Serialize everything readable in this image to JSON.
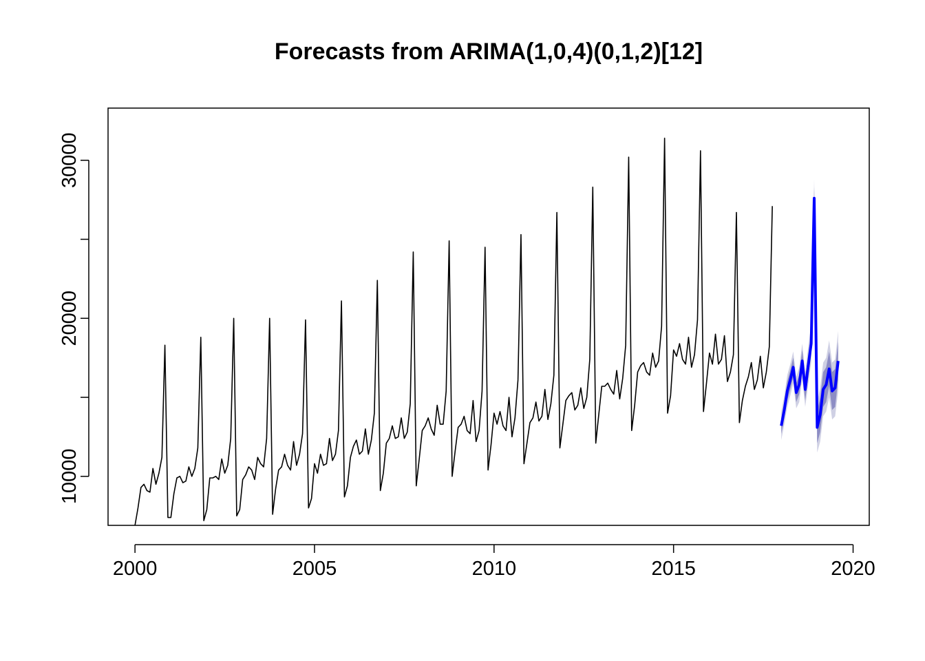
{
  "chart_data": {
    "type": "line",
    "title": "Forecasts from ARIMA(1,0,4)(0,1,2)[12]",
    "xlabel": "",
    "ylabel": "",
    "xlim": [
      1999.25,
      2020.45
    ],
    "ylim": [
      6900,
      33300
    ],
    "x_ticks": [
      2000,
      2005,
      2010,
      2015,
      2020
    ],
    "y_ticks": [
      10000,
      20000,
      30000
    ],
    "grid": false,
    "legend": "none",
    "colors": {
      "history": "#000000",
      "forecast": "#0000ff",
      "band80": "#8d8dc4",
      "band95": "#cfd0e4"
    },
    "series": [
      {
        "role": "history",
        "start": 2000,
        "frequency": 12,
        "values": [
          6900,
          8000,
          9300,
          9500,
          9100,
          9000,
          10500,
          9500,
          10200,
          11200,
          18300,
          7400,
          7400,
          8900,
          9900,
          10000,
          9600,
          9700,
          10600,
          10000,
          10500,
          11800,
          18800,
          7200,
          7900,
          9900,
          9900,
          10000,
          9800,
          11100,
          10200,
          10700,
          12400,
          20000,
          7500,
          7900,
          9800,
          10100,
          10600,
          10400,
          9800,
          11200,
          10800,
          10600,
          12400,
          20000,
          7600,
          9200,
          10400,
          10600,
          11400,
          10700,
          10400,
          12200,
          10700,
          11400,
          12700,
          19900,
          8000,
          8600,
          10800,
          10200,
          11400,
          10700,
          10800,
          12400,
          11000,
          11400,
          12900,
          21100,
          8700,
          9400,
          11200,
          11900,
          12300,
          11400,
          11600,
          13000,
          11400,
          12300,
          14000,
          22400,
          9100,
          10200,
          12100,
          12400,
          13200,
          12400,
          12500,
          13700,
          12400,
          12800,
          14600,
          24200,
          9400,
          11100,
          12900,
          13200,
          13700,
          13000,
          12600,
          14500,
          13300,
          13300,
          15400,
          24900,
          10000,
          11600,
          13100,
          13300,
          13800,
          12900,
          12700,
          14800,
          12200,
          12900,
          15400,
          24500,
          10400,
          12000,
          14000,
          13300,
          14100,
          13200,
          12900,
          15000,
          12500,
          13700,
          16100,
          25300,
          10800,
          12100,
          13400,
          13700,
          14700,
          13500,
          13800,
          15500,
          13600,
          14600,
          16400,
          26700,
          11800,
          13300,
          14800,
          15100,
          15300,
          14200,
          14500,
          15600,
          14300,
          15000,
          17400,
          28300,
          12100,
          13900,
          15700,
          15700,
          15900,
          15500,
          15200,
          16700,
          14900,
          16200,
          18300,
          30200,
          12900,
          14500,
          16600,
          17000,
          17200,
          16600,
          16400,
          17800,
          16900,
          17300,
          19500,
          31400,
          14000,
          15100,
          18000,
          17600,
          18400,
          17400,
          17100,
          18800,
          16900,
          17700,
          19900,
          30600,
          14100,
          15900,
          17800,
          17100,
          19000,
          17100,
          17400,
          18900,
          16000,
          16600,
          17700,
          26700,
          13400,
          14800,
          15700,
          16300,
          17200,
          15500,
          16100,
          17600,
          15600,
          16600,
          18200,
          27100
        ]
      },
      {
        "role": "forecast",
        "start": 2018,
        "frequency": 12,
        "values": [
          13200,
          14200,
          15400,
          16100,
          16900,
          15300,
          15800,
          17300,
          15500,
          17000,
          18400,
          27600,
          13100,
          13900,
          15500,
          15800,
          16800,
          15400,
          15600,
          17300
        ],
        "lo80": [
          12700,
          13700,
          14800,
          15500,
          16300,
          14700,
          15200,
          16600,
          14800,
          16300,
          17700,
          26900,
          12100,
          12800,
          14400,
          14700,
          15700,
          14200,
          14400,
          16100
        ],
        "hi80": [
          13700,
          14700,
          16000,
          16700,
          17500,
          15900,
          16400,
          18000,
          16200,
          17700,
          19100,
          28300,
          14100,
          15000,
          16600,
          16900,
          17900,
          16600,
          16800,
          18500
        ],
        "lo95": [
          12300,
          13300,
          14400,
          15100,
          15900,
          14300,
          14700,
          16200,
          14400,
          15800,
          17200,
          26400,
          11500,
          12200,
          13800,
          14100,
          15000,
          13600,
          13800,
          15400
        ],
        "hi95": [
          14100,
          15100,
          16400,
          17100,
          17900,
          16300,
          16900,
          18400,
          16600,
          18200,
          19600,
          28800,
          14700,
          15600,
          17200,
          17500,
          18600,
          17200,
          17400,
          19200
        ]
      }
    ]
  }
}
